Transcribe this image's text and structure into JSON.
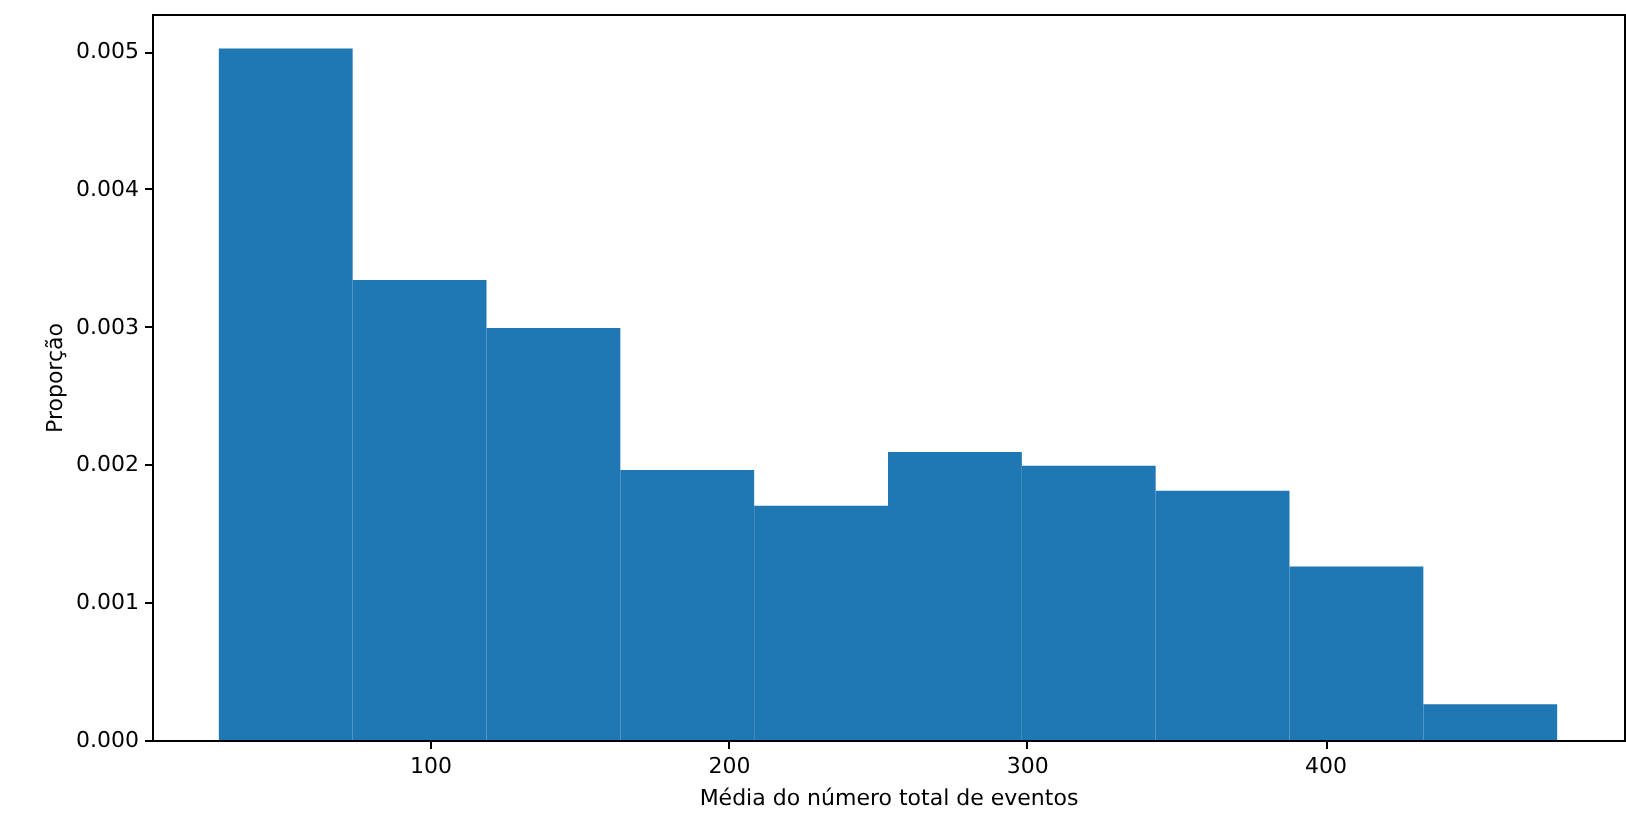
{
  "chart_data": {
    "type": "histogram",
    "xlabel": "Média do número total de eventos",
    "ylabel": "Proporção",
    "color": "#1f77b4",
    "bins": [
      29.2,
      74.06,
      118.92,
      163.78,
      208.64,
      253.5,
      298.36,
      343.22,
      388.08,
      432.94,
      477.8
    ],
    "values": [
      0.00502,
      0.00334,
      0.00299,
      0.00196,
      0.0017,
      0.00209,
      0.00199,
      0.00181,
      0.00126,
      0.00026
    ],
    "xlim": [
      6.8,
      500.2
    ],
    "xticks": [
      100,
      200,
      300,
      400
    ],
    "ylim": [
      0,
      0.00527
    ],
    "yticks": [
      {
        "value": 0,
        "label": "0.000"
      },
      0.001,
      0.002,
      0.003,
      0.004,
      0.005
    ],
    "grid": false
  }
}
